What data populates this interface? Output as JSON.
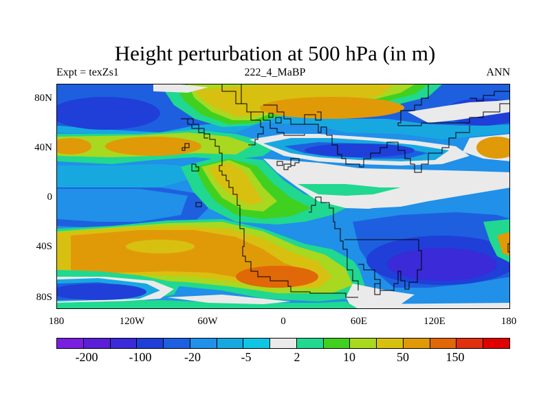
{
  "title": "Height perturbation at 500 hPa (in m)",
  "subtitle_left": "Expt = texZs1",
  "subtitle_center": "222_4_MaBP",
  "subtitle_right": "ANN",
  "y_labels": [
    "80N",
    "40N",
    "0",
    "40S",
    "80S"
  ],
  "x_labels": [
    "180",
    "120W",
    "60W",
    "0",
    "60E",
    "120E",
    "180"
  ],
  "colorbar": {
    "colors": [
      "#7a1fe0",
      "#5a1fd6",
      "#3a2ad8",
      "#1f3fd8",
      "#1e5fe0",
      "#2090e8",
      "#18a8e0",
      "#10c4e4",
      "#eaeaea",
      "#20d890",
      "#40d020",
      "#a8d820",
      "#d8c010",
      "#e09a08",
      "#e06808",
      "#e03010",
      "#e00000"
    ],
    "labels": [
      "-200",
      "-100",
      "-20",
      "-5",
      "2",
      "10",
      "50",
      "150"
    ]
  },
  "palette": {
    "purple": "#7a1fe0",
    "blue_dark": "#3a2ad8",
    "blue": "#1e5fe0",
    "blue_mid": "#2090e8",
    "cyan": "#18a8e0",
    "cyan_light": "#10c4e4",
    "neutral": "#eaeaea",
    "teal": "#20d890",
    "green": "#40d020",
    "yellow_green": "#a8d820",
    "yellow": "#d8c010",
    "orange": "#e09a08"
  }
}
